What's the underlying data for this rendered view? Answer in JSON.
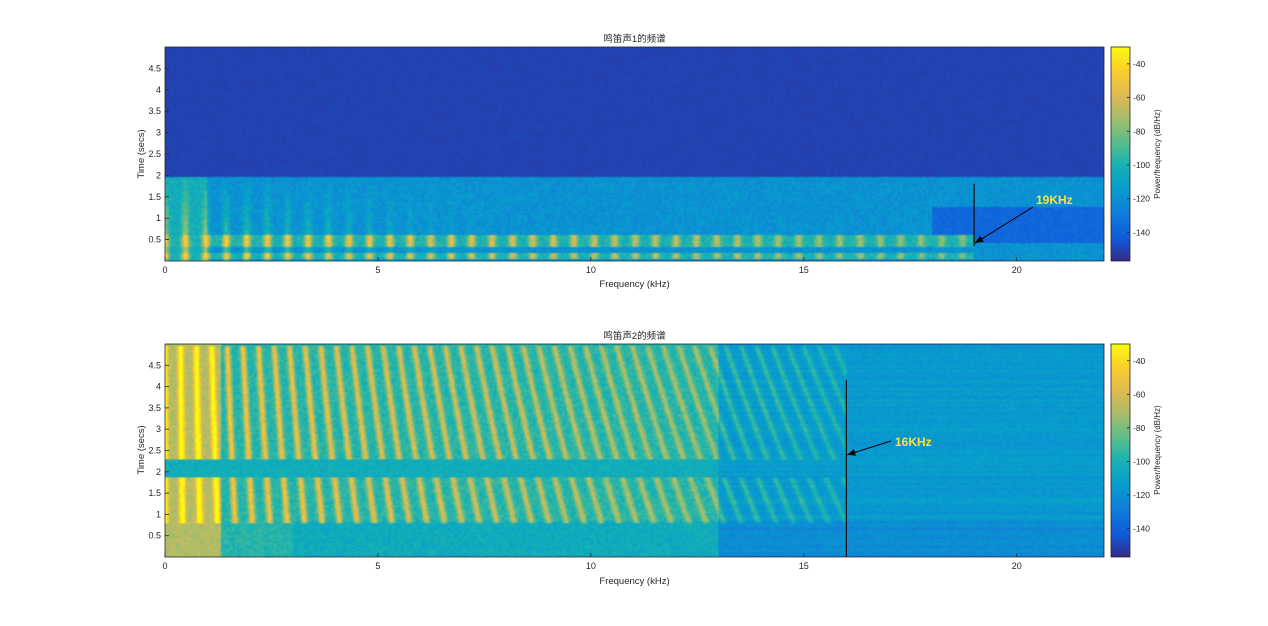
{
  "chart_data": [
    {
      "type": "heatmap",
      "title": "鸣笛声1的频谱",
      "xlabel": "Frequency (kHz)",
      "ylabel": "Time (secs)",
      "xlim": [
        0,
        22.05
      ],
      "ylim": [
        0,
        5
      ],
      "xticks": [
        "0",
        "5",
        "10",
        "15",
        "20"
      ],
      "yticks": [
        "0.5",
        "1",
        "1.5",
        "2",
        "2.5",
        "3",
        "3.5",
        "4",
        "4.5"
      ],
      "colorbar": {
        "label": "Power/frequency (dB/Hz)",
        "ticks": [
          "-40",
          "-60",
          "-80",
          "-100",
          "-120",
          "-140"
        ],
        "range": [
          -157,
          -30
        ]
      },
      "signal_end_time": 1.95,
      "cutoff_frequency_khz": 19,
      "annotation": "19KHz",
      "annotation_color": "#ffe135"
    },
    {
      "type": "heatmap",
      "title": "鸣笛声2的频谱",
      "xlabel": "Frequency (kHz)",
      "ylabel": "Time (secs)",
      "xlim": [
        0,
        22.05
      ],
      "ylim": [
        0,
        5
      ],
      "xticks": [
        "0",
        "5",
        "10",
        "15",
        "20"
      ],
      "yticks": [
        "0.5",
        "1",
        "1.5",
        "2",
        "2.5",
        "3",
        "3.5",
        "4",
        "4.5"
      ],
      "colorbar": {
        "label": "Power/frequency (dB/Hz)",
        "ticks": [
          "-40",
          "-60",
          "-80",
          "-100",
          "-120",
          "-140"
        ],
        "range": [
          -157,
          -30
        ]
      },
      "signal_end_time": 5,
      "cutoff_frequency_khz": 16,
      "annotation": "16KHz",
      "annotation_color": "#ffe135"
    }
  ],
  "colormap": "parula"
}
